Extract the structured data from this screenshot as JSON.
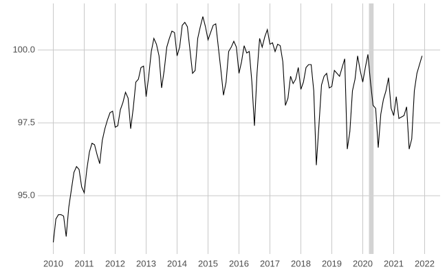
{
  "chart_data": {
    "type": "line",
    "x": [
      2010,
      2010.083,
      2010.167,
      2010.25,
      2010.333,
      2010.417,
      2010.5,
      2010.583,
      2010.667,
      2010.75,
      2010.833,
      2010.917,
      2011,
      2011.083,
      2011.167,
      2011.25,
      2011.333,
      2011.417,
      2011.5,
      2011.583,
      2011.667,
      2011.75,
      2011.833,
      2011.917,
      2012,
      2012.083,
      2012.167,
      2012.25,
      2012.333,
      2012.417,
      2012.5,
      2012.583,
      2012.667,
      2012.75,
      2012.833,
      2012.917,
      2013,
      2013.083,
      2013.167,
      2013.25,
      2013.333,
      2013.417,
      2013.5,
      2013.583,
      2013.667,
      2013.75,
      2013.833,
      2013.917,
      2014,
      2014.083,
      2014.167,
      2014.25,
      2014.333,
      2014.417,
      2014.5,
      2014.583,
      2014.667,
      2014.75,
      2014.833,
      2014.917,
      2015,
      2015.083,
      2015.167,
      2015.25,
      2015.333,
      2015.417,
      2015.5,
      2015.583,
      2015.667,
      2015.75,
      2015.833,
      2015.917,
      2016,
      2016.083,
      2016.167,
      2016.25,
      2016.333,
      2016.417,
      2016.5,
      2016.583,
      2016.667,
      2016.75,
      2016.833,
      2016.917,
      2017,
      2017.083,
      2017.167,
      2017.25,
      2017.333,
      2017.417,
      2017.5,
      2017.583,
      2017.667,
      2017.75,
      2017.833,
      2017.917,
      2018,
      2018.083,
      2018.167,
      2018.25,
      2018.333,
      2018.417,
      2018.5,
      2018.583,
      2018.667,
      2018.75,
      2018.833,
      2018.917,
      2019,
      2019.083,
      2019.167,
      2019.25,
      2019.333,
      2019.417,
      2019.5,
      2019.583,
      2019.667,
      2019.75,
      2019.833,
      2019.917,
      2020,
      2020.083,
      2020.167,
      2020.25,
      2020.333,
      2020.417,
      2020.5,
      2020.583,
      2020.667,
      2020.75,
      2020.833,
      2020.917,
      2021,
      2021.083,
      2021.167,
      2021.25,
      2021.333,
      2021.417,
      2021.5,
      2021.583,
      2021.667,
      2021.75,
      2021.833,
      2021.917
    ],
    "series": [
      {
        "color": "#000000",
        "values": [
          93.4,
          94.2,
          94.35,
          94.35,
          94.3,
          93.6,
          94.6,
          95.2,
          95.8,
          96.0,
          95.9,
          95.3,
          95.1,
          95.9,
          96.5,
          96.8,
          96.75,
          96.4,
          96.1,
          96.9,
          97.3,
          97.6,
          97.85,
          97.9,
          97.35,
          97.4,
          97.95,
          98.2,
          98.55,
          98.35,
          97.3,
          98.0,
          98.9,
          99.0,
          99.4,
          99.45,
          98.4,
          99.1,
          99.95,
          100.4,
          100.2,
          99.8,
          98.7,
          99.3,
          100.1,
          100.4,
          100.65,
          100.6,
          99.8,
          100.1,
          100.85,
          100.95,
          100.8,
          100.0,
          99.2,
          99.3,
          100.4,
          100.8,
          101.15,
          100.8,
          100.35,
          100.6,
          100.85,
          100.9,
          100.1,
          99.3,
          98.45,
          98.9,
          99.95,
          100.1,
          100.3,
          100.1,
          99.2,
          99.6,
          100.15,
          99.9,
          99.95,
          98.9,
          97.4,
          99.2,
          100.4,
          100.1,
          100.45,
          100.7,
          100.2,
          100.25,
          99.95,
          100.2,
          100.15,
          99.6,
          98.1,
          98.35,
          99.1,
          98.85,
          99.0,
          99.4,
          98.65,
          98.9,
          99.4,
          99.5,
          99.5,
          98.6,
          96.05,
          97.4,
          98.8,
          99.1,
          99.2,
          98.7,
          98.75,
          99.3,
          99.2,
          99.1,
          99.4,
          99.7,
          96.6,
          97.2,
          98.6,
          99.0,
          99.8,
          99.3,
          98.9,
          99.4,
          99.85,
          98.9,
          98.1,
          98.0,
          96.65,
          97.8,
          98.3,
          98.6,
          99.05,
          98.0,
          97.75,
          98.4,
          97.65,
          97.7,
          97.75,
          98.05,
          96.6,
          96.95,
          98.6,
          99.2,
          99.5,
          99.8
        ]
      }
    ],
    "highlight": {
      "xmin": 2020.2,
      "xmax": 2020.35,
      "color": "#d3d3d3"
    },
    "xlim": [
      2009.5,
      2022.5
    ],
    "xticks": [
      2010,
      2011,
      2012,
      2013,
      2014,
      2015,
      2016,
      2017,
      2018,
      2019,
      2020,
      2021,
      2022
    ],
    "ylim": [
      93.0,
      101.6
    ],
    "yticks": [
      {
        "value": 95,
        "label": "95.0"
      },
      97.5,
      {
        "value": 100,
        "label": "100.0"
      }
    ],
    "grid": true
  }
}
